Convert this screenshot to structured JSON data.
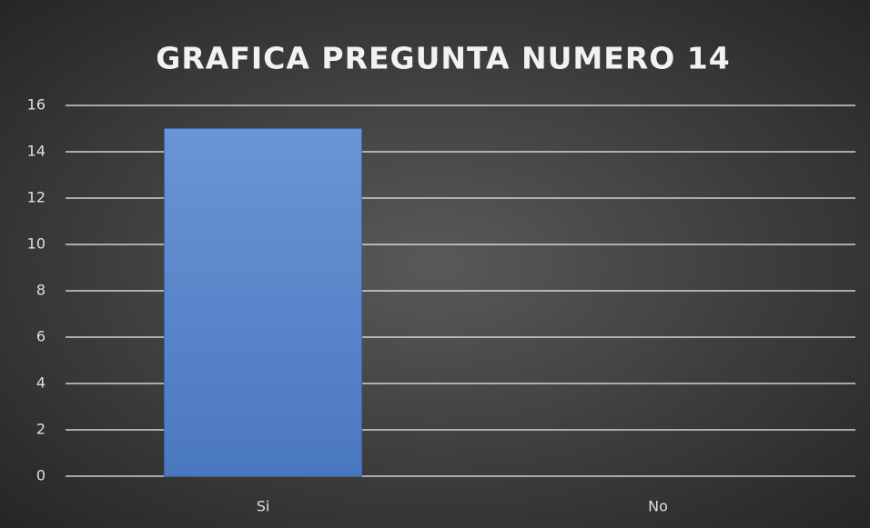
{
  "chart_data": {
    "type": "bar",
    "title": "GRAFICA PREGUNTA NUMERO 14",
    "categories": [
      "Si",
      "No"
    ],
    "values": [
      15,
      0
    ],
    "color": "#4f81c7",
    "ylim": [
      0,
      16
    ],
    "yticks": [
      0,
      2,
      4,
      6,
      8,
      10,
      12,
      14,
      16
    ],
    "grid": true
  }
}
